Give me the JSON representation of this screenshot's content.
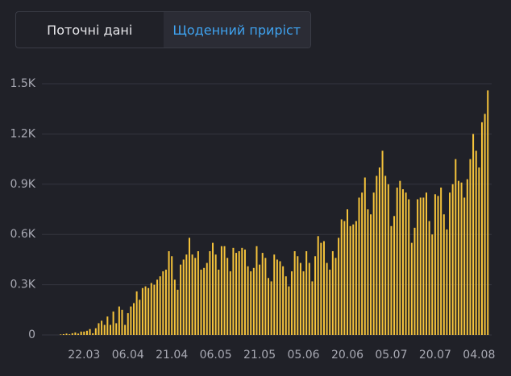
{
  "tabs": [
    "Поточні дані",
    "Щоденний приріст"
  ],
  "active_tab": 1,
  "chart_data": {
    "type": "bar",
    "color": "#f5c33b",
    "categories": [
      null,
      null,
      null,
      null,
      null,
      null,
      null,
      null,
      null,
      null,
      "22.03",
      null,
      null,
      null,
      null,
      null,
      null,
      null,
      null,
      null,
      null,
      null,
      null,
      null,
      null,
      "06.04",
      null,
      null,
      null,
      null,
      null,
      null,
      null,
      null,
      null,
      null,
      null,
      null,
      null,
      null,
      "21.04",
      null,
      null,
      null,
      null,
      null,
      null,
      null,
      null,
      null,
      null,
      null,
      null,
      null,
      null,
      "06.05",
      null,
      null,
      null,
      null,
      null,
      null,
      null,
      null,
      null,
      null,
      null,
      null,
      null,
      null,
      "21.05",
      null,
      null,
      null,
      null,
      null,
      null,
      null,
      null,
      null,
      null,
      null,
      null,
      null,
      null,
      "05.06",
      null,
      null,
      null,
      null,
      null,
      null,
      null,
      null,
      null,
      null,
      null,
      null,
      null,
      null,
      "20.06",
      null,
      null,
      null,
      null,
      null,
      null,
      null,
      null,
      null,
      null,
      null,
      null,
      null,
      null,
      "05.07",
      null,
      null,
      null,
      null,
      null,
      null,
      null,
      null,
      null,
      null,
      null,
      null,
      null,
      null,
      "20.07",
      null,
      null,
      null,
      null,
      null,
      null,
      null,
      null,
      null,
      null,
      null,
      null,
      null,
      null,
      "04.08",
      null,
      null,
      null
    ],
    "values": [
      0,
      0,
      3,
      5,
      8,
      4,
      10,
      15,
      8,
      20,
      20,
      25,
      35,
      10,
      40,
      70,
      85,
      60,
      110,
      60,
      140,
      70,
      170,
      150,
      60,
      130,
      170,
      190,
      260,
      210,
      280,
      290,
      280,
      310,
      300,
      330,
      350,
      380,
      390,
      500,
      470,
      330,
      270,
      420,
      450,
      480,
      580,
      480,
      460,
      500,
      390,
      400,
      430,
      500,
      550,
      480,
      390,
      530,
      530,
      460,
      380,
      520,
      490,
      500,
      520,
      510,
      410,
      380,
      400,
      530,
      420,
      490,
      460,
      340,
      320,
      480,
      450,
      440,
      410,
      350,
      290,
      380,
      500,
      470,
      430,
      380,
      500,
      430,
      320,
      470,
      590,
      550,
      560,
      430,
      390,
      500,
      460,
      580,
      690,
      680,
      750,
      650,
      660,
      680,
      820,
      850,
      940,
      750,
      720,
      850,
      950,
      1000,
      1100,
      950,
      900,
      650,
      710,
      880,
      920,
      870,
      850,
      810,
      550,
      640,
      810,
      820,
      820,
      850,
      680,
      600,
      840,
      830,
      880,
      720,
      630,
      850,
      900,
      1050,
      920,
      910,
      820,
      930,
      1050,
      1200,
      1100,
      1000,
      1270,
      1320,
      1460
    ],
    "ylim": [
      0,
      1500
    ],
    "yticks": [
      0,
      {
        "value": 300,
        "label": "0.3K"
      },
      {
        "value": 600,
        "label": "0.6K"
      },
      {
        "value": 900,
        "label": "0.9K"
      },
      {
        "value": 1200,
        "label": "1.2K"
      },
      {
        "value": 1500,
        "label": "1.5K"
      }
    ],
    "grid": true
  }
}
